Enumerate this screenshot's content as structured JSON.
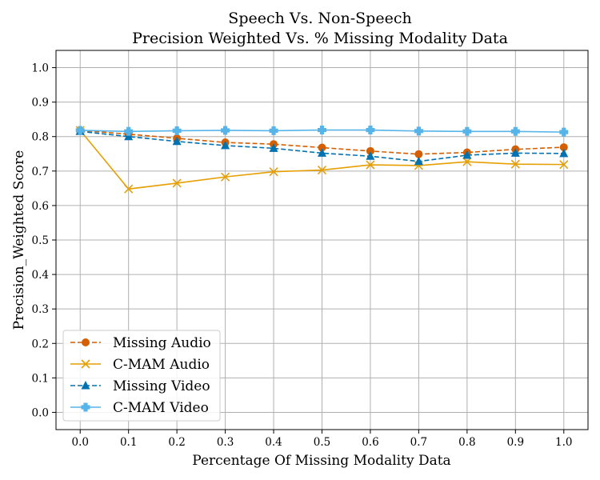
{
  "chart_data": {
    "type": "line",
    "title_line1": "Speech Vs. Non-Speech",
    "title_line2": "Precision Weighted Vs. % Missing Modality Data",
    "xlabel": "Percentage Of Missing Modality Data",
    "ylabel": "Precision_Weighted Score",
    "x": [
      0.0,
      0.1,
      0.2,
      0.3,
      0.4,
      0.5,
      0.6,
      0.7,
      0.8,
      0.9,
      1.0
    ],
    "x_tick_labels": [
      "0.0",
      "0.1",
      "0.2",
      "0.3",
      "0.4",
      "0.5",
      "0.6",
      "0.7",
      "0.8",
      "0.9",
      "1.0"
    ],
    "y_ticks": [
      0.0,
      0.1,
      0.2,
      0.3,
      0.4,
      0.5,
      0.6,
      0.7,
      0.8,
      0.9,
      1.0
    ],
    "y_tick_labels": [
      "0.0",
      "0.1",
      "0.2",
      "0.3",
      "0.4",
      "0.5",
      "0.6",
      "0.7",
      "0.8",
      "0.9",
      "1.0"
    ],
    "xlim": [
      -0.05,
      1.05
    ],
    "ylim": [
      -0.05,
      1.05
    ],
    "grid": true,
    "legend_position": "lower-left",
    "series": [
      {
        "name": "Missing Audio",
        "color": "#d55e00",
        "dashed": true,
        "marker": "circle",
        "values": [
          0.818,
          0.807,
          0.795,
          0.783,
          0.778,
          0.768,
          0.758,
          0.749,
          0.754,
          0.763,
          0.769
        ]
      },
      {
        "name": "C-MAM Audio",
        "color": "#e69f00",
        "dashed": false,
        "marker": "x",
        "values": [
          0.818,
          0.648,
          0.665,
          0.683,
          0.698,
          0.703,
          0.718,
          0.716,
          0.727,
          0.72,
          0.719
        ]
      },
      {
        "name": "Missing Video",
        "color": "#0072b2",
        "dashed": true,
        "marker": "triangle",
        "values": [
          0.815,
          0.8,
          0.786,
          0.774,
          0.766,
          0.752,
          0.743,
          0.728,
          0.746,
          0.752,
          0.751
        ]
      },
      {
        "name": "C-MAM Video",
        "color": "#56b4e9",
        "dashed": false,
        "marker": "plus",
        "values": [
          0.818,
          0.815,
          0.817,
          0.818,
          0.817,
          0.819,
          0.819,
          0.816,
          0.815,
          0.815,
          0.813
        ]
      }
    ]
  }
}
